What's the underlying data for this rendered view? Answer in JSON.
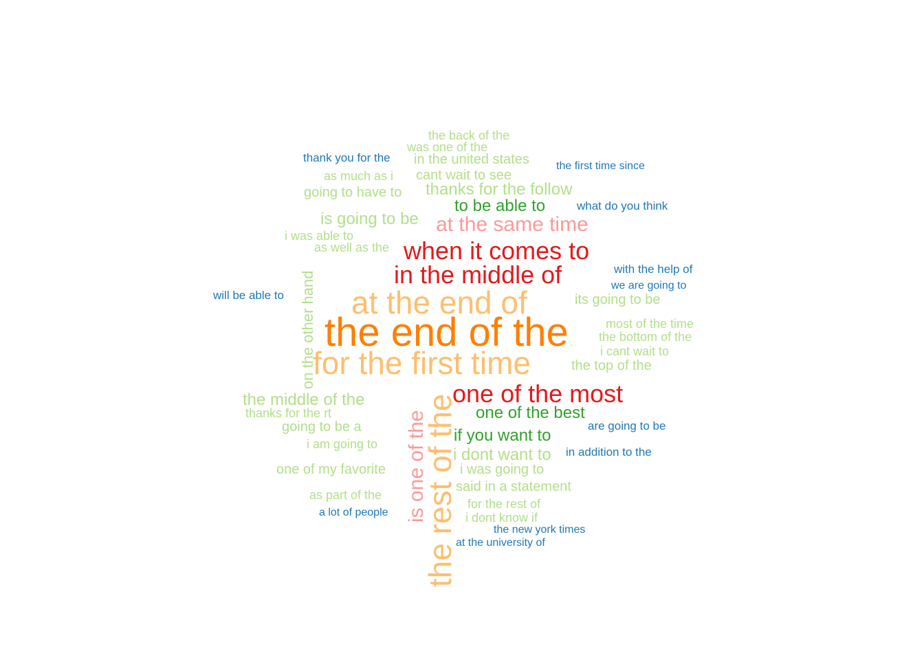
{
  "chart_data": {
    "type": "wordcloud",
    "colors": {
      "dark_orange": "#ff7f00",
      "light_orange": "#fdbf6f",
      "dark_red": "#e31a1c",
      "light_red": "#fb9a99",
      "dark_green": "#33a02c",
      "light_green": "#b2df8a",
      "dark_blue": "#1f78b4"
    },
    "words": [
      {
        "text": "the end of the",
        "color": "#ff7f00",
        "rotated": false
      },
      {
        "text": "at the end of",
        "color": "#fdbf6f",
        "rotated": false
      },
      {
        "text": "for the first time",
        "color": "#fdbf6f",
        "rotated": false
      },
      {
        "text": "the rest of the",
        "color": "#fdbf6f",
        "rotated": true
      },
      {
        "text": "when it comes to",
        "color": "#e31a1c",
        "rotated": false
      },
      {
        "text": "in the middle of",
        "color": "#e31a1c",
        "rotated": false
      },
      {
        "text": "one of the most",
        "color": "#e31a1c",
        "rotated": false
      },
      {
        "text": "at the same time",
        "color": "#fb9a99",
        "rotated": false
      },
      {
        "text": "is one of the",
        "color": "#fb9a99",
        "rotated": true
      },
      {
        "text": "to be able to",
        "color": "#33a02c",
        "rotated": false
      },
      {
        "text": "one of the best",
        "color": "#33a02c",
        "rotated": false
      },
      {
        "text": "if you want to",
        "color": "#33a02c",
        "rotated": false
      },
      {
        "text": "on the other hand",
        "color": "#b2df8a",
        "rotated": true
      },
      {
        "text": "is going to be",
        "color": "#b2df8a",
        "rotated": false
      },
      {
        "text": "thanks for the follow",
        "color": "#b2df8a",
        "rotated": false
      },
      {
        "text": "the middle of the",
        "color": "#b2df8a",
        "rotated": false
      },
      {
        "text": "i dont want to",
        "color": "#b2df8a",
        "rotated": false
      },
      {
        "text": "the back of the",
        "color": "#b2df8a",
        "rotated": false
      },
      {
        "text": "was one of the",
        "color": "#b2df8a",
        "rotated": false
      },
      {
        "text": "in the united states",
        "color": "#b2df8a",
        "rotated": false
      },
      {
        "text": "cant wait to see",
        "color": "#b2df8a",
        "rotated": false
      },
      {
        "text": "as much as i",
        "color": "#b2df8a",
        "rotated": false
      },
      {
        "text": "going to have to",
        "color": "#b2df8a",
        "rotated": false
      },
      {
        "text": "i was able to",
        "color": "#b2df8a",
        "rotated": false
      },
      {
        "text": "as well as the",
        "color": "#b2df8a",
        "rotated": false
      },
      {
        "text": "its going to be",
        "color": "#b2df8a",
        "rotated": false
      },
      {
        "text": "most of the time",
        "color": "#b2df8a",
        "rotated": false
      },
      {
        "text": "the bottom of the",
        "color": "#b2df8a",
        "rotated": false
      },
      {
        "text": "i cant wait to",
        "color": "#b2df8a",
        "rotated": false
      },
      {
        "text": "the top of the",
        "color": "#b2df8a",
        "rotated": false
      },
      {
        "text": "thanks for the rt",
        "color": "#b2df8a",
        "rotated": false
      },
      {
        "text": "going to be a",
        "color": "#b2df8a",
        "rotated": false
      },
      {
        "text": "i am going to",
        "color": "#b2df8a",
        "rotated": false
      },
      {
        "text": "one of my favorite",
        "color": "#b2df8a",
        "rotated": false
      },
      {
        "text": "i was going to",
        "color": "#b2df8a",
        "rotated": false
      },
      {
        "text": "said in a statement",
        "color": "#b2df8a",
        "rotated": false
      },
      {
        "text": "as part of the",
        "color": "#b2df8a",
        "rotated": false
      },
      {
        "text": "for the rest of",
        "color": "#b2df8a",
        "rotated": false
      },
      {
        "text": "i dont know if",
        "color": "#b2df8a",
        "rotated": false
      },
      {
        "text": "thank you for the",
        "color": "#1f78b4",
        "rotated": false
      },
      {
        "text": "the first time since",
        "color": "#1f78b4",
        "rotated": false
      },
      {
        "text": "what do you think",
        "color": "#1f78b4",
        "rotated": false
      },
      {
        "text": "with the help of",
        "color": "#1f78b4",
        "rotated": false
      },
      {
        "text": "we are going to",
        "color": "#1f78b4",
        "rotated": false
      },
      {
        "text": "will be able to",
        "color": "#1f78b4",
        "rotated": false
      },
      {
        "text": "are going to be",
        "color": "#1f78b4",
        "rotated": false
      },
      {
        "text": "in addition to the",
        "color": "#1f78b4",
        "rotated": false
      },
      {
        "text": "a lot of people",
        "color": "#1f78b4",
        "rotated": false
      },
      {
        "text": "the new york times",
        "color": "#1f78b4",
        "rotated": false
      },
      {
        "text": "at the university of",
        "color": "#1f78b4",
        "rotated": false
      }
    ]
  }
}
